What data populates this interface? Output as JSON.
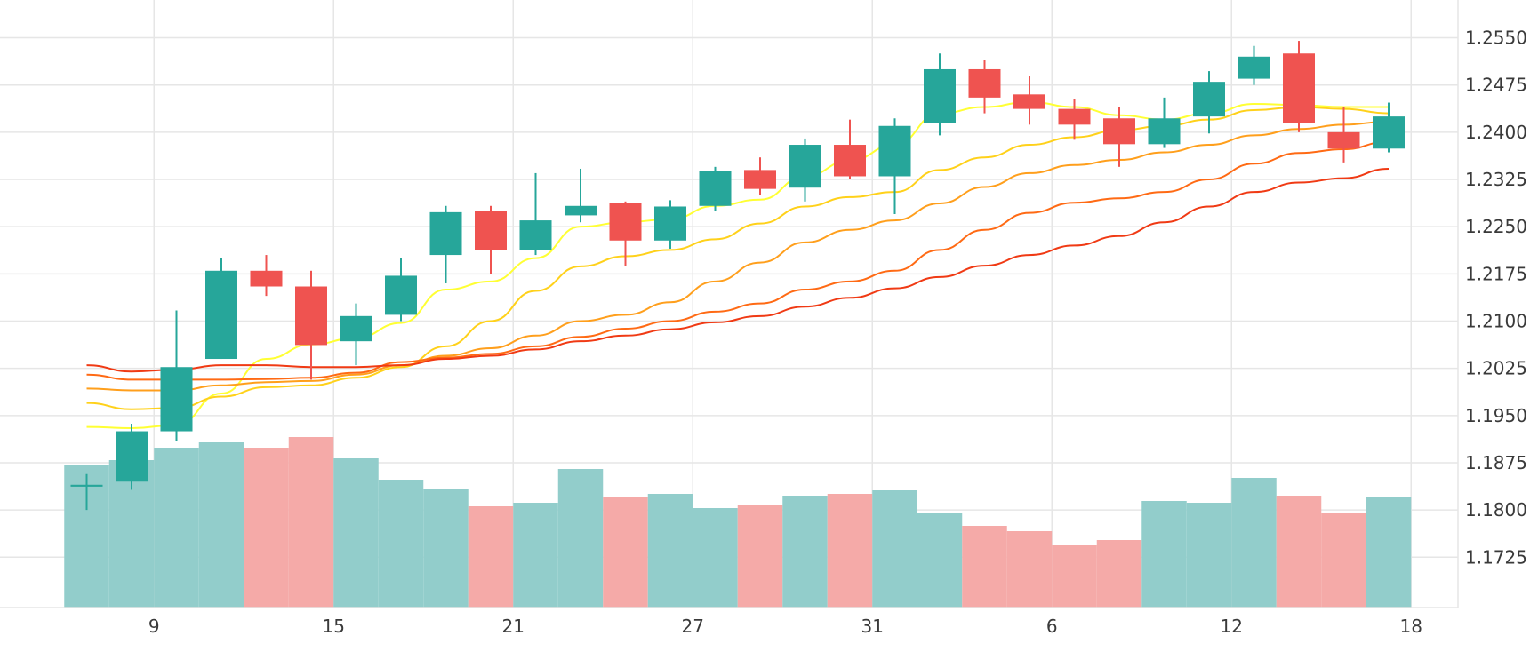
{
  "chart_data": {
    "type": "candlestick",
    "title": "",
    "xlabel": "",
    "ylabel": "",
    "ylim": [
      1.1645,
      1.261
    ],
    "y_ticks": [
      1.255,
      1.2475,
      1.24,
      1.2325,
      1.225,
      1.2175,
      1.21,
      1.2025,
      1.195,
      1.1875,
      1.18,
      1.1725
    ],
    "y_tick_labels": [
      "1.2550",
      "1.2475",
      "1.2400",
      "1.2325",
      "1.2250",
      "1.2175",
      "1.2100",
      "1.2025",
      "1.1950",
      "1.1875",
      "1.1800",
      "1.1725"
    ],
    "x_tick_labels": [
      {
        "index": 1.5,
        "label": "9"
      },
      {
        "index": 5.5,
        "label": "15"
      },
      {
        "index": 9.5,
        "label": "21"
      },
      {
        "index": 13.5,
        "label": "27"
      },
      {
        "index": 17.5,
        "label": "31"
      },
      {
        "index": 21.5,
        "label": "6"
      },
      {
        "index": 25.5,
        "label": "12"
      },
      {
        "index": 29.5,
        "label": "18"
      }
    ],
    "grid": true,
    "colors": {
      "up": "#26a69a",
      "down": "#ef5350",
      "volume_up": "#92cdcb",
      "volume_down": "#f5aaa8",
      "grid": "#e6e6e6",
      "ma": [
        "#ffff33",
        "#ffd11a",
        "#ff9f1c",
        "#ff6a14",
        "#f03a14"
      ]
    },
    "candles": [
      {
        "o": 1.1837,
        "h": 1.1857,
        "l": 1.18,
        "c": 1.184
      },
      {
        "o": 1.1845,
        "h": 1.1937,
        "l": 1.1832,
        "c": 1.1925
      },
      {
        "o": 1.1925,
        "h": 1.2117,
        "l": 1.191,
        "c": 1.2027
      },
      {
        "o": 1.204,
        "h": 1.22,
        "l": 1.204,
        "c": 1.218
      },
      {
        "o": 1.218,
        "h": 1.2205,
        "l": 1.214,
        "c": 1.2155
      },
      {
        "o": 1.2155,
        "h": 1.218,
        "l": 1.2007,
        "c": 1.2062
      },
      {
        "o": 1.2068,
        "h": 1.2128,
        "l": 1.203,
        "c": 1.2108
      },
      {
        "o": 1.211,
        "h": 1.22,
        "l": 1.21,
        "c": 1.2172
      },
      {
        "o": 1.2205,
        "h": 1.2283,
        "l": 1.216,
        "c": 1.2273
      },
      {
        "o": 1.2275,
        "h": 1.2283,
        "l": 1.2175,
        "c": 1.2213
      },
      {
        "o": 1.2213,
        "h": 1.2335,
        "l": 1.2205,
        "c": 1.226
      },
      {
        "o": 1.2268,
        "h": 1.2342,
        "l": 1.2257,
        "c": 1.2283
      },
      {
        "o": 1.2288,
        "h": 1.229,
        "l": 1.2187,
        "c": 1.2228
      },
      {
        "o": 1.2228,
        "h": 1.2292,
        "l": 1.2215,
        "c": 1.2282
      },
      {
        "o": 1.2283,
        "h": 1.2345,
        "l": 1.2275,
        "c": 1.2338
      },
      {
        "o": 1.234,
        "h": 1.236,
        "l": 1.23,
        "c": 1.231
      },
      {
        "o": 1.2312,
        "h": 1.239,
        "l": 1.229,
        "c": 1.238
      },
      {
        "o": 1.238,
        "h": 1.242,
        "l": 1.2325,
        "c": 1.233
      },
      {
        "o": 1.233,
        "h": 1.2422,
        "l": 1.227,
        "c": 1.241
      },
      {
        "o": 1.2415,
        "h": 1.2525,
        "l": 1.2395,
        "c": 1.25
      },
      {
        "o": 1.25,
        "h": 1.2515,
        "l": 1.243,
        "c": 1.2455
      },
      {
        "o": 1.246,
        "h": 1.249,
        "l": 1.2412,
        "c": 1.2437
      },
      {
        "o": 1.2437,
        "h": 1.2452,
        "l": 1.2388,
        "c": 1.2412
      },
      {
        "o": 1.2422,
        "h": 1.244,
        "l": 1.2345,
        "c": 1.2381
      },
      {
        "o": 1.2381,
        "h": 1.2455,
        "l": 1.2375,
        "c": 1.2422
      },
      {
        "o": 1.2425,
        "h": 1.2497,
        "l": 1.2398,
        "c": 1.248
      },
      {
        "o": 1.2485,
        "h": 1.2537,
        "l": 1.2475,
        "c": 1.252
      },
      {
        "o": 1.2525,
        "h": 1.2545,
        "l": 1.24,
        "c": 1.2415
      },
      {
        "o": 1.24,
        "h": 1.244,
        "l": 1.2352,
        "c": 1.2374
      },
      {
        "o": 1.2374,
        "h": 1.2447,
        "l": 1.2368,
        "c": 1.2425
      }
    ],
    "volume": [
      {
        "v": 0.8,
        "dir": "up"
      },
      {
        "v": 0.83,
        "dir": "up"
      },
      {
        "v": 0.9,
        "dir": "up"
      },
      {
        "v": 0.93,
        "dir": "up"
      },
      {
        "v": 0.9,
        "dir": "down"
      },
      {
        "v": 0.96,
        "dir": "down"
      },
      {
        "v": 0.84,
        "dir": "up"
      },
      {
        "v": 0.72,
        "dir": "up"
      },
      {
        "v": 0.67,
        "dir": "up"
      },
      {
        "v": 0.57,
        "dir": "down"
      },
      {
        "v": 0.59,
        "dir": "up"
      },
      {
        "v": 0.78,
        "dir": "up"
      },
      {
        "v": 0.62,
        "dir": "down"
      },
      {
        "v": 0.64,
        "dir": "up"
      },
      {
        "v": 0.56,
        "dir": "up"
      },
      {
        "v": 0.58,
        "dir": "down"
      },
      {
        "v": 0.63,
        "dir": "up"
      },
      {
        "v": 0.64,
        "dir": "down"
      },
      {
        "v": 0.66,
        "dir": "up"
      },
      {
        "v": 0.53,
        "dir": "up"
      },
      {
        "v": 0.46,
        "dir": "down"
      },
      {
        "v": 0.43,
        "dir": "down"
      },
      {
        "v": 0.35,
        "dir": "down"
      },
      {
        "v": 0.38,
        "dir": "down"
      },
      {
        "v": 0.6,
        "dir": "up"
      },
      {
        "v": 0.59,
        "dir": "up"
      },
      {
        "v": 0.73,
        "dir": "up"
      },
      {
        "v": 0.63,
        "dir": "down"
      },
      {
        "v": 0.53,
        "dir": "down"
      },
      {
        "v": 0.62,
        "dir": "up"
      }
    ],
    "moving_averages": [
      {
        "values": [
          1.1932,
          1.193,
          1.1935,
          1.1985,
          1.204,
          1.2063,
          1.2073,
          1.2097,
          1.215,
          1.2163,
          1.22,
          1.225,
          1.2257,
          1.2262,
          1.2283,
          1.2293,
          1.233,
          1.2355,
          1.238,
          1.243,
          1.244,
          1.2448,
          1.244,
          1.2427,
          1.242,
          1.243,
          1.2445,
          1.2443,
          1.244,
          1.244
        ]
      },
      {
        "values": [
          1.197,
          1.196,
          1.1962,
          1.198,
          1.1995,
          1.1998,
          1.201,
          1.2027,
          1.206,
          1.21,
          1.2148,
          1.2187,
          1.2203,
          1.2213,
          1.223,
          1.2255,
          1.2282,
          1.2297,
          1.2305,
          1.234,
          1.236,
          1.238,
          1.2392,
          1.2403,
          1.241,
          1.242,
          1.2435,
          1.244,
          1.2437,
          1.243
        ]
      },
      {
        "values": [
          1.1993,
          1.199,
          1.199,
          1.1998,
          1.2003,
          1.2005,
          1.2015,
          1.203,
          1.2045,
          1.2057,
          1.2077,
          1.21,
          1.211,
          1.213,
          1.2163,
          1.2193,
          1.2225,
          1.2245,
          1.226,
          1.2287,
          1.2313,
          1.2335,
          1.2348,
          1.2356,
          1.2368,
          1.238,
          1.2395,
          1.2405,
          1.2412,
          1.2417
        ]
      },
      {
        "values": [
          1.2015,
          1.2007,
          1.2007,
          1.2007,
          1.2008,
          1.201,
          1.2018,
          1.2035,
          1.2042,
          1.2048,
          1.206,
          1.2075,
          1.2088,
          1.21,
          1.2115,
          1.2128,
          1.215,
          1.2163,
          1.218,
          1.2213,
          1.2245,
          1.2272,
          1.2288,
          1.2295,
          1.2305,
          1.2325,
          1.235,
          1.2367,
          1.2373,
          1.2385
        ]
      },
      {
        "values": [
          1.203,
          1.202,
          1.2023,
          1.203,
          1.203,
          1.2027,
          1.2027,
          1.203,
          1.204,
          1.2045,
          1.2055,
          1.2068,
          1.2077,
          1.2087,
          1.2098,
          1.2108,
          1.2123,
          1.2137,
          1.2152,
          1.217,
          1.2188,
          1.2205,
          1.222,
          1.2235,
          1.2257,
          1.2282,
          1.2305,
          1.232,
          1.2327,
          1.2342
        ]
      }
    ]
  }
}
